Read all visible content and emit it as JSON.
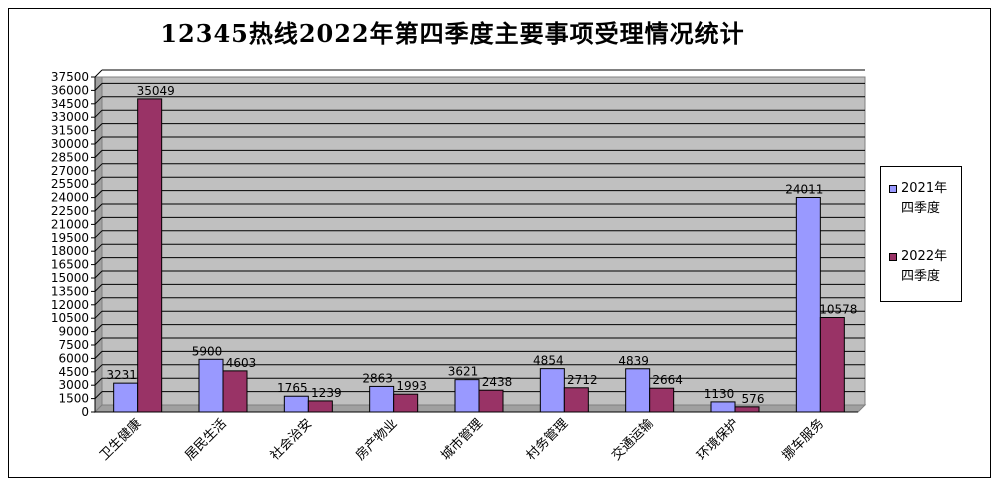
{
  "chart_data": {
    "type": "bar",
    "title": "12345热线2022年第四季度主要事项受理情况统计",
    "categories": [
      "卫生健康",
      "居民生活",
      "社会治安",
      "房产物业",
      "城市管理",
      "村务管理",
      "交通运输",
      "环境保护",
      "挪车服务"
    ],
    "series": [
      {
        "name": "2021年\n四季度",
        "values": [
          3231,
          5900,
          1765,
          2863,
          3621,
          4854,
          4839,
          1130,
          24011
        ],
        "color": "#9999ff"
      },
      {
        "name": "2022年\n四季度",
        "values": [
          35049,
          4603,
          1239,
          1993,
          2438,
          2712,
          2664,
          576,
          10578
        ],
        "color": "#993366"
      }
    ],
    "data_labels": [
      [
        "3231",
        "5900",
        "1765",
        "2863",
        "3621",
        "4854",
        "4839",
        "1130",
        "24011"
      ],
      [
        "35049",
        "4603",
        "1239",
        "1993",
        "2438",
        "2712",
        "2664",
        "576",
        "10578"
      ]
    ],
    "y_ticks": [
      "0",
      "1500",
      "3000",
      "4500",
      "6000",
      "7500",
      "9000",
      "10500",
      "12000",
      "13500",
      "15000",
      "16500",
      "18000",
      "19500",
      "21000",
      "22500",
      "24000",
      "25500",
      "27000",
      "28500",
      "30000",
      "31500",
      "33000",
      "34500",
      "36000",
      "37500"
    ],
    "ylim": [
      0,
      37500
    ],
    "grid": true,
    "plot_background": "#c0c0c0",
    "legend_position": "right",
    "xlabel": "",
    "ylabel": ""
  }
}
